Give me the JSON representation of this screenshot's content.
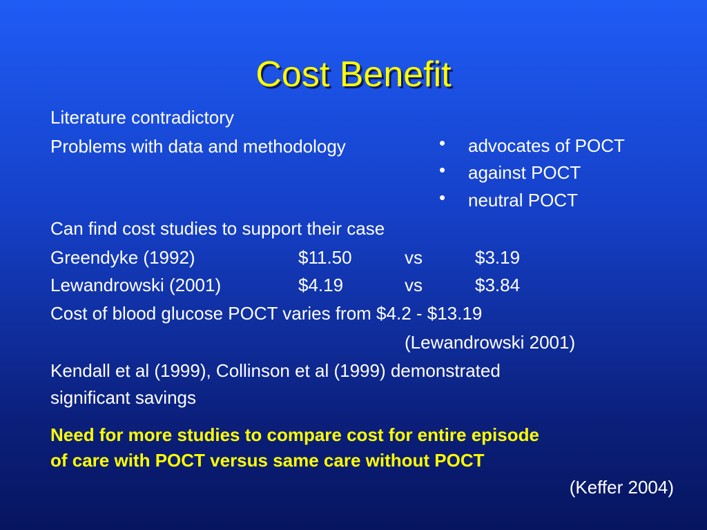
{
  "title": "Cost Benefit",
  "points": [
    "Literature contradictory",
    "Problems with data and methodology",
    "Can find cost studies to support their case",
    "Cost of blood glucose POCT varies from $4.2 - $13.19",
    "Kendall et al (1999), Collinson et al (1999) demonstrated",
    "significant savings"
  ],
  "bullets": [
    "advocates of POCT",
    "against POCT",
    "neutral POCT"
  ],
  "comparisons": [
    {
      "study": "Greendyke (1992)",
      "cost_a": "$11.50",
      "vs": "vs",
      "cost_b": "$3.19"
    },
    {
      "study": "Lewandrowski (2001)",
      "cost_a": "$4.19",
      "vs": "vs",
      "cost_b": "$3.84"
    }
  ],
  "citations": [
    "(Lewandrowski 2001)",
    "(Keffer 2004)"
  ],
  "conclusion": [
    "Need for more studies to compare cost for entire episode",
    "of care with POCT versus same care without POCT"
  ]
}
